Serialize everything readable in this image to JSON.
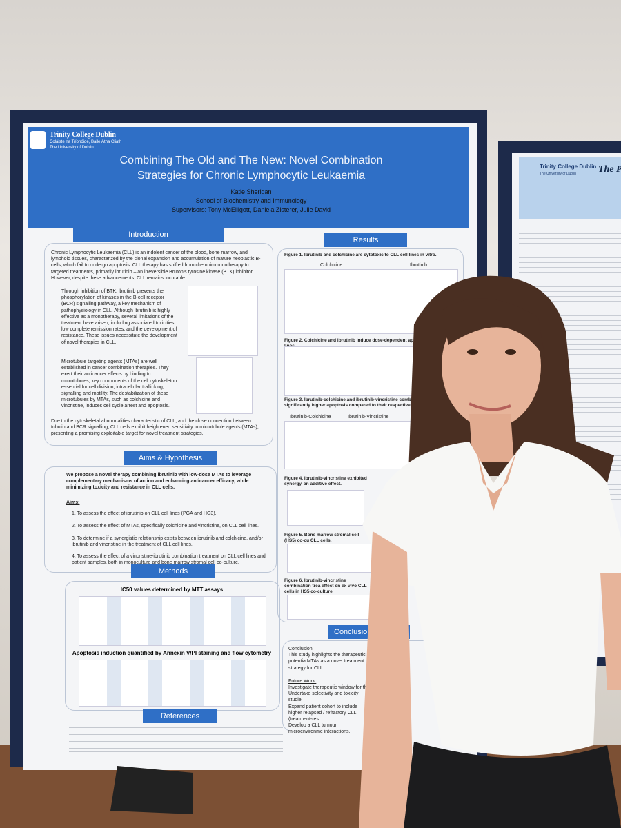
{
  "poster": {
    "header": {
      "institution": "Trinity College Dublin",
      "institution_irish": "Coláiste na Tríonóide, Baile Átha Cliath",
      "university": "The University of Dublin",
      "title": "Combining The Old and The New: Novel Combination Strategies for Chronic Lymphocytic Leukaemia",
      "author": "Katie Sheridan",
      "school": "School of Biochemistry and Immunology",
      "supervisors": "Supervisors: Tony McElligott, Daniela Zisterer, Julie David"
    },
    "introduction": {
      "heading": "Introduction",
      "paragraphs": [
        "Chronic Lymphocytic Leukaemia (CLL) is an indolent cancer of the blood, bone marrow, and lymphoid tissues, characterized by the clonal expansion and accumulation of mature neoplastic B-cells, which fail to undergo apoptosis. CLL therapy has shifted from chemoimmunotherapy to targeted treatments, primarily ibrutinib – an irreversible Bruton's tyrosine kinase (BTK) inhibitor. However, despite these advancements, CLL remains incurable.",
        "Through inhibition of BTK, ibrutinib prevents the phosphorylation of kinases in the B-cell receptor (BCR) signalling pathway, a key mechanism of pathophysiology in CLL. Although ibrutinib is highly effective as a monotherapy, several limitations of the treatment have arisen, including associated toxicities, low complete remission rates, and the development of resistance. These issues necessitate the development of novel therapies in CLL.",
        "Microtubule targeting agents (MTAs) are well established in cancer combination therapies. They exert their anticancer effects by binding to microtubules, key components of the cell cytoskeleton essential for cell division, intracellular trafficking, signalling and motility. The destabilization of these microtubules by MTAs, such as colchicine and vincristine, induces cell cycle arrest and apoptosis.",
        "Due to the cytoskeletal abnormalities characteristic of CLL, and the close connection between tubulin and BCR signalling, CLL cells exhibit heightened sensitivity to microtubule agents (MTAs), presenting a promising exploitable target for novel treatment strategies."
      ]
    },
    "aims": {
      "heading": "Aims & Hypothesis",
      "hypothesis": "We propose a novel therapy combining ibrutinib with low-dose MTAs to leverage complementary mechanisms of action and enhancing anticancer efficacy, while minimizing toxicity and resistance in CLL cells.",
      "label": "Aims:",
      "items": [
        "1.  To assess the effect of ibrutinib on CLL cell lines (PGA and HG3).",
        "2.  To assess the effect of MTAs, specifically colchicine and vincristine, on CLL cell lines.",
        "3.  To determine if a synergistic relationship exists between ibrutinib and colchicine, and/or ibrutinib and vincristine in the treatment of CLL cell lines.",
        "4.  To assess the effect of a vincristine-ibrutinib combination treatment on CLL cell lines and patient samples, both in monoculture and bone marrow stromal cell co-culture."
      ]
    },
    "methods": {
      "heading": "Methods",
      "subheadings": [
        "IC50 values determined by MTT assays",
        "Apoptosis induction quantified by Annexin V/PI staining and flow cytometry"
      ]
    },
    "references": {
      "heading": "References"
    },
    "results": {
      "heading": "Results",
      "figures": [
        "Figure 1. Ibrutinib and colchicine are cytotoxic to CLL cell lines in vitro.",
        "Figure 2. Colchicine and ibrutinib induce dose-dependent apoptosis in CLL cell lines",
        "Figure 3. Ibrutinib-colchicine and ibrutinib-vincristine combination treatments indu significantly higher apoptosis compared to their respective single agent treatments",
        "Figure 4. Ibrutinib-vincristine exhibited synergy, an additive effect.",
        "Figure 5. Bone marrow stromal cell (HS5) co-cu CLL cells.",
        "Figure 6. Ibrutinib-vincristine combination trea effect on ex vivo CLL cells in HS5 co-culture"
      ],
      "panel_labels": [
        "Colchicine",
        "Ibrutinib",
        "Ibrutinib-Colchicine",
        "Ibrutinib-Vincristine"
      ]
    },
    "conclusion": {
      "heading": "Conclusion & F",
      "label": "Conclusion:",
      "text": "This study highlights the therapeutic potentia MTAs as a novel treatment strategy for CLL",
      "future_label": "Future Work:",
      "future": [
        "Investigate therapeutic window for this",
        "Undertake selectivity and toxicity studie",
        "Expand patient cohort to include higher relapsed / refractory CLL (treatment-res",
        "Develop a CLL tumour microenvironme interactions."
      ]
    },
    "neighbor_poster": {
      "institution": "Trinity College Dublin",
      "university": "The University of Dublin",
      "title": "The P"
    }
  }
}
